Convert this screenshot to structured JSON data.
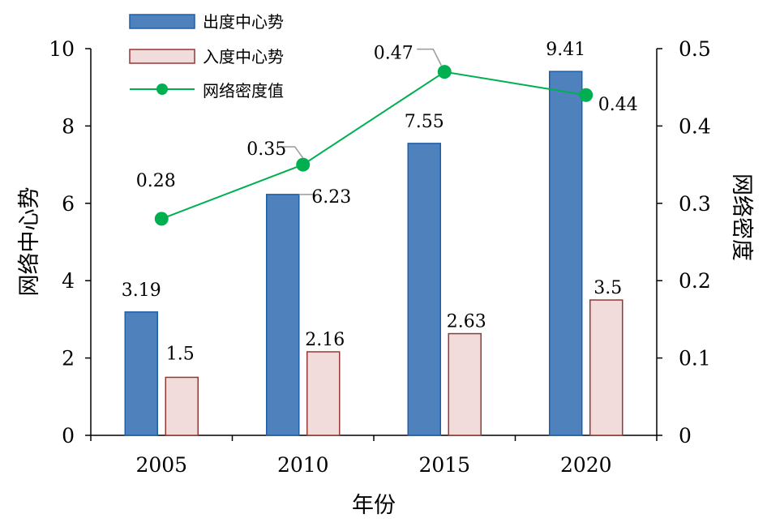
{
  "chart_data": {
    "type": "bar",
    "categories": [
      "2005",
      "2010",
      "2015",
      "2020"
    ],
    "series": [
      {
        "name": "出度中心势",
        "type": "bar",
        "axis": "left",
        "values": [
          3.19,
          6.23,
          7.55,
          9.41
        ],
        "labels": [
          "3.19",
          "6.23",
          "7.55",
          "9.41"
        ],
        "color": "#4f81bd",
        "border": "#1f5fa8"
      },
      {
        "name": "入度中心势",
        "type": "bar",
        "axis": "left",
        "values": [
          1.5,
          2.16,
          2.63,
          3.5
        ],
        "labels": [
          "1.5",
          "2.16",
          "2.63",
          "3.5"
        ],
        "color": "#f2dcdb",
        "border": "#953735"
      },
      {
        "name": "网络密度值",
        "type": "line",
        "axis": "right",
        "values": [
          0.28,
          0.35,
          0.47,
          0.44
        ],
        "labels": [
          "0.28",
          "0.35",
          "0.47",
          "0.44"
        ],
        "color": "#00b050"
      }
    ],
    "xlabel": "年份",
    "ylabel": "网络中心势",
    "y2label": "网络密度",
    "ylim": [
      0,
      10
    ],
    "y2lim": [
      0,
      0.5
    ],
    "yticks": [
      "0",
      "2",
      "4",
      "6",
      "8",
      "10"
    ],
    "y2ticks": [
      "0",
      "0.1",
      "0.2",
      "0.3",
      "0.4",
      "0.5"
    ],
    "grid": false,
    "legend_position": "top-left"
  }
}
